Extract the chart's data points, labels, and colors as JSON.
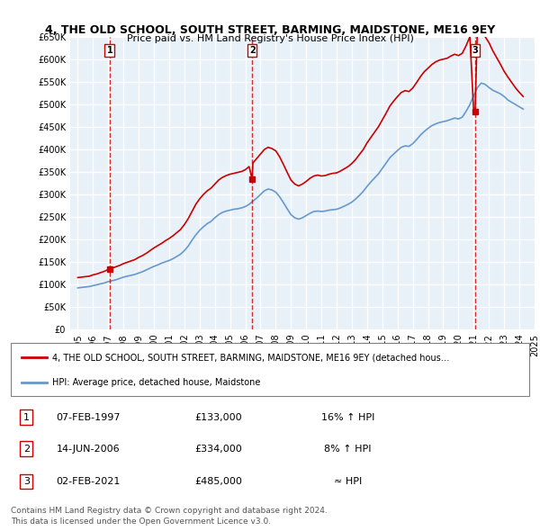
{
  "title": "4, THE OLD SCHOOL, SOUTH STREET, BARMING, MAIDSTONE, ME16 9EY",
  "subtitle": "Price paid vs. HM Land Registry's House Price Index (HPI)",
  "ylabel": "",
  "ylim": [
    0,
    650000
  ],
  "yticks": [
    0,
    50000,
    100000,
    150000,
    200000,
    250000,
    300000,
    350000,
    400000,
    450000,
    500000,
    550000,
    600000,
    650000
  ],
  "ytick_labels": [
    "£0",
    "£50K",
    "£100K",
    "£150K",
    "£200K",
    "£250K",
    "£300K",
    "£350K",
    "£400K",
    "£450K",
    "£500K",
    "£550K",
    "£600K",
    "£650K"
  ],
  "background_color": "#ffffff",
  "plot_bg_color": "#e8f0f8",
  "grid_color": "#ffffff",
  "red_line_color": "#cc0000",
  "blue_line_color": "#6699cc",
  "purchase_dates": [
    1997.09,
    2006.45,
    2021.09
  ],
  "purchase_prices": [
    133000,
    334000,
    485000
  ],
  "purchase_labels": [
    "1",
    "2",
    "3"
  ],
  "hpi_years": [
    1995.0,
    1995.25,
    1995.5,
    1995.75,
    1996.0,
    1996.25,
    1996.5,
    1996.75,
    1997.0,
    1997.25,
    1997.5,
    1997.75,
    1998.0,
    1998.25,
    1998.5,
    1998.75,
    1999.0,
    1999.25,
    1999.5,
    1999.75,
    2000.0,
    2000.25,
    2000.5,
    2000.75,
    2001.0,
    2001.25,
    2001.5,
    2001.75,
    2002.0,
    2002.25,
    2002.5,
    2002.75,
    2003.0,
    2003.25,
    2003.5,
    2003.75,
    2004.0,
    2004.25,
    2004.5,
    2004.75,
    2005.0,
    2005.25,
    2005.5,
    2005.75,
    2006.0,
    2006.25,
    2006.5,
    2006.75,
    2007.0,
    2007.25,
    2007.5,
    2007.75,
    2008.0,
    2008.25,
    2008.5,
    2008.75,
    2009.0,
    2009.25,
    2009.5,
    2009.75,
    2010.0,
    2010.25,
    2010.5,
    2010.75,
    2011.0,
    2011.25,
    2011.5,
    2011.75,
    2012.0,
    2012.25,
    2012.5,
    2012.75,
    2013.0,
    2013.25,
    2013.5,
    2013.75,
    2014.0,
    2014.25,
    2014.5,
    2014.75,
    2015.0,
    2015.25,
    2015.5,
    2015.75,
    2016.0,
    2016.25,
    2016.5,
    2016.75,
    2017.0,
    2017.25,
    2017.5,
    2017.75,
    2018.0,
    2018.25,
    2018.5,
    2018.75,
    2019.0,
    2019.25,
    2019.5,
    2019.75,
    2020.0,
    2020.25,
    2020.5,
    2020.75,
    2021.0,
    2021.25,
    2021.5,
    2021.75,
    2022.0,
    2022.25,
    2022.5,
    2022.75,
    2023.0,
    2023.25,
    2023.5,
    2023.75,
    2024.0,
    2024.25
  ],
  "hpi_values": [
    92000,
    93000,
    94000,
    95000,
    97000,
    99000,
    101000,
    103000,
    106000,
    108000,
    110000,
    113000,
    116000,
    118000,
    120000,
    122000,
    125000,
    128000,
    132000,
    136000,
    140000,
    143000,
    147000,
    150000,
    153000,
    157000,
    162000,
    167000,
    175000,
    185000,
    198000,
    210000,
    220000,
    228000,
    235000,
    240000,
    248000,
    255000,
    260000,
    263000,
    265000,
    267000,
    268000,
    270000,
    273000,
    278000,
    285000,
    292000,
    300000,
    308000,
    312000,
    310000,
    305000,
    295000,
    282000,
    268000,
    255000,
    248000,
    245000,
    248000,
    253000,
    258000,
    262000,
    263000,
    262000,
    263000,
    265000,
    266000,
    267000,
    270000,
    274000,
    278000,
    283000,
    290000,
    298000,
    307000,
    318000,
    328000,
    337000,
    346000,
    358000,
    370000,
    382000,
    390000,
    398000,
    405000,
    408000,
    407000,
    413000,
    422000,
    432000,
    440000,
    447000,
    453000,
    457000,
    460000,
    462000,
    464000,
    467000,
    470000,
    468000,
    472000,
    485000,
    500000,
    520000,
    538000,
    548000,
    545000,
    538000,
    532000,
    528000,
    524000,
    518000,
    510000,
    505000,
    500000,
    495000,
    490000
  ],
  "red_years": [
    1995.0,
    1995.25,
    1995.5,
    1995.75,
    1996.0,
    1996.25,
    1996.5,
    1996.75,
    1997.0,
    1997.09,
    1997.25,
    1997.5,
    1997.75,
    1998.0,
    1998.25,
    1998.5,
    1998.75,
    1999.0,
    1999.25,
    1999.5,
    1999.75,
    2000.0,
    2000.25,
    2000.5,
    2000.75,
    2001.0,
    2001.25,
    2001.5,
    2001.75,
    2002.0,
    2002.25,
    2002.5,
    2002.75,
    2003.0,
    2003.25,
    2003.5,
    2003.75,
    2004.0,
    2004.25,
    2004.5,
    2004.75,
    2005.0,
    2005.25,
    2005.5,
    2005.75,
    2006.0,
    2006.25,
    2006.45,
    2006.5,
    2006.75,
    2007.0,
    2007.25,
    2007.5,
    2007.75,
    2008.0,
    2008.25,
    2008.5,
    2008.75,
    2009.0,
    2009.25,
    2009.5,
    2009.75,
    2010.0,
    2010.25,
    2010.5,
    2010.75,
    2011.0,
    2011.25,
    2011.5,
    2011.75,
    2012.0,
    2012.25,
    2012.5,
    2012.75,
    2013.0,
    2013.25,
    2013.5,
    2013.75,
    2014.0,
    2014.25,
    2014.5,
    2014.75,
    2015.0,
    2015.25,
    2015.5,
    2015.75,
    2016.0,
    2016.25,
    2016.5,
    2016.75,
    2017.0,
    2017.25,
    2017.5,
    2017.75,
    2018.0,
    2018.25,
    2018.5,
    2018.75,
    2019.0,
    2019.25,
    2019.5,
    2019.75,
    2020.0,
    2020.25,
    2020.5,
    2020.75,
    2021.0,
    2021.09,
    2021.25,
    2021.5,
    2021.75,
    2022.0,
    2022.25,
    2022.5,
    2022.75,
    2023.0,
    2023.25,
    2023.5,
    2023.75,
    2024.0,
    2024.25
  ],
  "red_values": [
    115000,
    116000,
    117000,
    118000,
    121000,
    123000,
    126000,
    129000,
    133000,
    133000,
    136000,
    139000,
    142000,
    146000,
    149000,
    152000,
    155000,
    160000,
    164000,
    169000,
    175000,
    181000,
    186000,
    191000,
    197000,
    202000,
    208000,
    215000,
    222000,
    233000,
    246000,
    262000,
    278000,
    290000,
    300000,
    308000,
    314000,
    323000,
    332000,
    338000,
    342000,
    345000,
    347000,
    349000,
    351000,
    355000,
    362000,
    334000,
    370000,
    380000,
    390000,
    400000,
    405000,
    402000,
    397000,
    384000,
    367000,
    349000,
    332000,
    323000,
    319000,
    323000,
    329000,
    336000,
    341000,
    343000,
    341000,
    342000,
    345000,
    347000,
    348000,
    352000,
    357000,
    362000,
    369000,
    378000,
    389000,
    400000,
    415000,
    427000,
    439000,
    451000,
    466000,
    481000,
    497000,
    508000,
    518000,
    527000,
    531000,
    529000,
    537000,
    549000,
    562000,
    573000,
    581000,
    589000,
    595000,
    599000,
    601000,
    603000,
    608000,
    612000,
    609000,
    614000,
    631000,
    651000,
    485000,
    485000,
    677000,
    665000,
    651000,
    638000,
    620000,
    605000,
    590000,
    574000,
    561000,
    549000,
    537000,
    527000,
    518000
  ],
  "legend_red": "4, THE OLD SCHOOL, SOUTH STREET, BARMING, MAIDSTONE, ME16 9EY (detached hous…",
  "legend_blue": "HPI: Average price, detached house, Maidstone",
  "table_data": [
    {
      "num": "1",
      "date": "07-FEB-1997",
      "price": "£133,000",
      "change": "16% ↑ HPI"
    },
    {
      "num": "2",
      "date": "14-JUN-2006",
      "price": "£334,000",
      "change": "8% ↑ HPI"
    },
    {
      "num": "3",
      "date": "02-FEB-2021",
      "price": "£485,000",
      "change": "≈ HPI"
    }
  ],
  "footnote1": "Contains HM Land Registry data © Crown copyright and database right 2024.",
  "footnote2": "This data is licensed under the Open Government Licence v3.0.",
  "xlim": [
    1994.5,
    2025.0
  ],
  "xticks": [
    1995,
    1996,
    1997,
    1998,
    1999,
    2000,
    2001,
    2002,
    2003,
    2004,
    2005,
    2006,
    2007,
    2008,
    2009,
    2010,
    2011,
    2012,
    2013,
    2014,
    2015,
    2016,
    2017,
    2018,
    2019,
    2020,
    2021,
    2022,
    2023,
    2024,
    2025
  ]
}
